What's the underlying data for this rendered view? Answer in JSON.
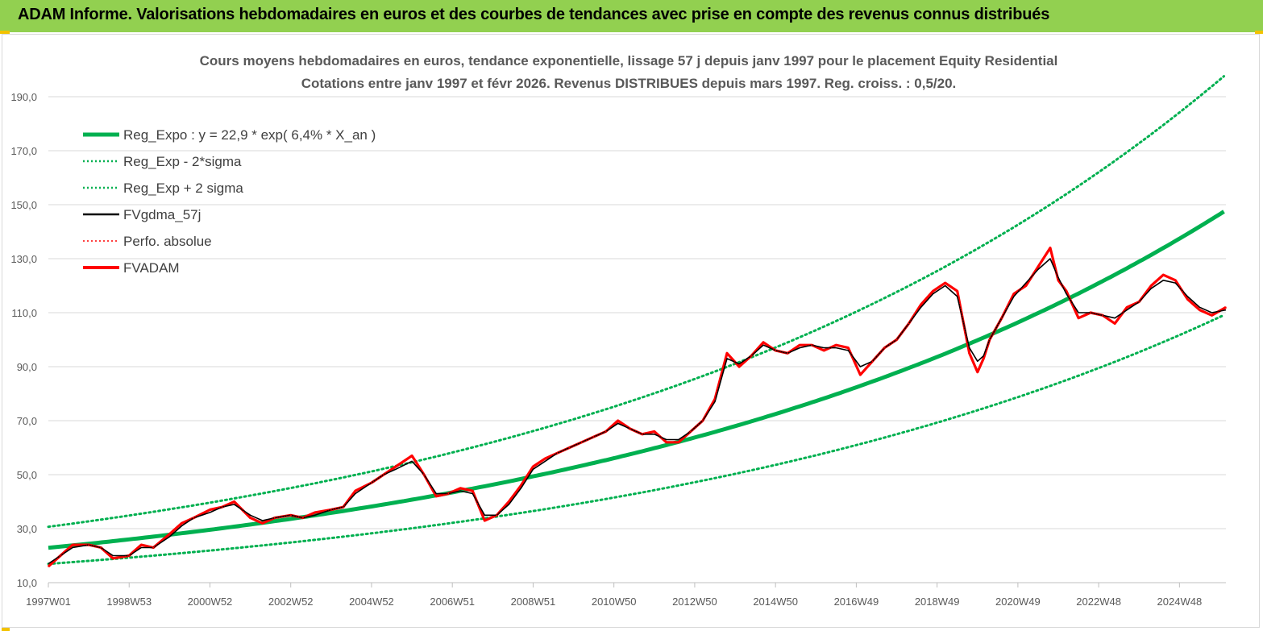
{
  "header": {
    "title": "ADAM Informe. Valorisations hebdomadaires en euros et des courbes de tendances avec prise en compte des revenus connus distribués"
  },
  "colors": {
    "header_bg": "#92d050",
    "reg_expo": "#00b050",
    "sigma_bands": "#00b050",
    "fvgdma": "#000000",
    "perfo_absolue": "#ff0000",
    "fvadam": "#ff0000",
    "grid": "#d9d9d9"
  },
  "chart_data": {
    "type": "line",
    "title_line1": "Cours moyens hebdomadaires en euros, tendance exponentielle, lissage 57 j depuis janv 1997 pour le placement Equity Residential",
    "title_line2": "Cotations entre janv 1997 et févr 2026. Revenus DISTRIBUES depuis mars 1997. Reg. croiss. : 0,5/20.",
    "xlabel": "",
    "ylabel": "",
    "ylim": [
      10,
      190
    ],
    "xlim": [
      1997.0,
      2026.15
    ],
    "grid": true,
    "legend_position": "top-left",
    "y_ticks": [
      "10,0",
      "30,0",
      "50,0",
      "70,0",
      "90,0",
      "110,0",
      "130,0",
      "150,0",
      "170,0",
      "190,0"
    ],
    "x_ticks": [
      {
        "label": "1997W01",
        "x": 1997.0
      },
      {
        "label": "1998W53",
        "x": 1999.0
      },
      {
        "label": "2000W52",
        "x": 2001.0
      },
      {
        "label": "2002W52",
        "x": 2003.0
      },
      {
        "label": "2004W52",
        "x": 2005.0
      },
      {
        "label": "2006W51",
        "x": 2007.0
      },
      {
        "label": "2008W51",
        "x": 2009.0
      },
      {
        "label": "2010W50",
        "x": 2011.0
      },
      {
        "label": "2012W50",
        "x": 2013.0
      },
      {
        "label": "2014W50",
        "x": 2015.0
      },
      {
        "label": "2016W49",
        "x": 2017.0
      },
      {
        "label": "2018W49",
        "x": 2019.0
      },
      {
        "label": "2020W49",
        "x": 2021.0
      },
      {
        "label": "2022W48",
        "x": 2023.0
      },
      {
        "label": "2024W48",
        "x": 2025.0
      }
    ],
    "regression": {
      "a": 22.9,
      "growth": 0.064,
      "start_year": 1997.0,
      "sigma_low_factor": 0.74,
      "sigma_high_factor": 1.34
    },
    "legend": [
      {
        "label": "Reg_Expo : y = 22,9 * exp( 6,4% *  X_an )",
        "style": "solid-thick",
        "color": "#00b050"
      },
      {
        "label": "Reg_Exp - 2*sigma",
        "style": "dotted",
        "color": "#00b050"
      },
      {
        "label": "Reg_Exp + 2 sigma",
        "style": "dotted",
        "color": "#00b050"
      },
      {
        "label": "FVgdma_57j",
        "style": "solid",
        "color": "#000000"
      },
      {
        "label": "Perfo. absolue",
        "style": "dotted",
        "color": "#ff0000"
      },
      {
        "label": "FVADAM",
        "style": "solid-thick",
        "color": "#ff0000"
      }
    ],
    "series": [
      {
        "name": "FVADAM",
        "x": [
          1997.0,
          1997.3,
          1997.6,
          1998.0,
          1998.3,
          1998.6,
          1999.0,
          1999.3,
          1999.6,
          2000.0,
          2000.3,
          2000.6,
          2001.0,
          2001.3,
          2001.6,
          2002.0,
          2002.3,
          2002.6,
          2003.0,
          2003.3,
          2003.6,
          2004.0,
          2004.3,
          2004.6,
          2005.0,
          2005.3,
          2005.6,
          2006.0,
          2006.3,
          2006.6,
          2006.9,
          2007.2,
          2007.5,
          2007.8,
          2008.1,
          2008.4,
          2008.7,
          2009.0,
          2009.3,
          2009.6,
          2009.9,
          2010.2,
          2010.5,
          2010.8,
          2011.1,
          2011.4,
          2011.7,
          2012.0,
          2012.3,
          2012.6,
          2012.9,
          2013.2,
          2013.5,
          2013.8,
          2014.1,
          2014.4,
          2014.7,
          2015.0,
          2015.3,
          2015.6,
          2015.9,
          2016.2,
          2016.5,
          2016.8,
          2017.1,
          2017.4,
          2017.7,
          2018.0,
          2018.3,
          2018.6,
          2018.9,
          2019.2,
          2019.5,
          2019.8,
          2020.0,
          2020.15,
          2020.3,
          2020.6,
          2020.9,
          2021.2,
          2021.5,
          2021.8,
          2022.0,
          2022.2,
          2022.5,
          2022.8,
          2023.1,
          2023.4,
          2023.7,
          2024.0,
          2024.3,
          2024.6,
          2024.9,
          2025.2,
          2025.5,
          2025.8,
          2026.15
        ],
        "values": [
          16,
          20,
          24,
          24,
          23,
          19,
          20,
          24,
          23,
          28,
          32,
          34,
          37,
          38,
          40,
          34,
          32,
          34,
          35,
          34,
          36,
          37,
          38,
          44,
          47,
          50,
          53,
          57,
          50,
          42,
          43,
          45,
          44,
          33,
          35,
          40,
          46,
          53,
          56,
          58,
          60,
          62,
          64,
          66,
          70,
          67,
          65,
          66,
          62,
          62,
          66,
          70,
          78,
          95,
          90,
          94,
          99,
          96,
          95,
          98,
          98,
          96,
          98,
          97,
          87,
          92,
          97,
          100,
          106,
          113,
          118,
          121,
          118,
          95,
          88,
          93,
          100,
          108,
          117,
          120,
          127,
          134,
          122,
          118,
          108,
          110,
          109,
          106,
          112,
          114,
          120,
          124,
          122,
          115,
          111,
          109,
          112
        ]
      },
      {
        "name": "FVgdma_57j",
        "x": [
          1997.0,
          1997.3,
          1997.6,
          1998.0,
          1998.3,
          1998.6,
          1999.0,
          1999.3,
          1999.6,
          2000.0,
          2000.3,
          2000.6,
          2001.0,
          2001.3,
          2001.6,
          2002.0,
          2002.3,
          2002.6,
          2003.0,
          2003.3,
          2003.6,
          2004.0,
          2004.3,
          2004.6,
          2005.0,
          2005.3,
          2005.6,
          2006.0,
          2006.3,
          2006.6,
          2006.9,
          2007.2,
          2007.5,
          2007.8,
          2008.1,
          2008.4,
          2008.7,
          2009.0,
          2009.3,
          2009.6,
          2009.9,
          2010.2,
          2010.5,
          2010.8,
          2011.1,
          2011.4,
          2011.7,
          2012.0,
          2012.3,
          2012.6,
          2012.9,
          2013.2,
          2013.5,
          2013.8,
          2014.1,
          2014.4,
          2014.7,
          2015.0,
          2015.3,
          2015.6,
          2015.9,
          2016.2,
          2016.5,
          2016.8,
          2017.1,
          2017.4,
          2017.7,
          2018.0,
          2018.3,
          2018.6,
          2018.9,
          2019.2,
          2019.5,
          2019.8,
          2020.0,
          2020.15,
          2020.3,
          2020.6,
          2020.9,
          2021.2,
          2021.5,
          2021.8,
          2022.0,
          2022.2,
          2022.5,
          2022.8,
          2023.1,
          2023.4,
          2023.7,
          2024.0,
          2024.3,
          2024.6,
          2024.9,
          2025.2,
          2025.5,
          2025.8,
          2026.15
        ],
        "values": [
          17,
          20,
          23,
          24,
          23,
          20,
          20,
          23,
          23,
          27,
          31,
          34,
          36,
          38,
          39,
          35,
          33,
          34,
          35,
          34,
          35,
          37,
          38,
          43,
          47,
          50,
          52,
          55,
          50,
          43,
          43,
          44,
          43,
          35,
          35,
          39,
          45,
          52,
          55,
          58,
          60,
          62,
          64,
          66,
          69,
          67,
          65,
          65,
          63,
          63,
          66,
          70,
          77,
          93,
          91,
          94,
          98,
          96,
          95,
          97,
          98,
          97,
          97,
          96,
          90,
          92,
          97,
          100,
          106,
          112,
          117,
          120,
          116,
          97,
          92,
          94,
          100,
          108,
          116,
          121,
          126,
          130,
          123,
          117,
          110,
          110,
          109,
          108,
          111,
          114,
          119,
          122,
          121,
          116,
          112,
          110,
          111
        ]
      }
    ]
  }
}
